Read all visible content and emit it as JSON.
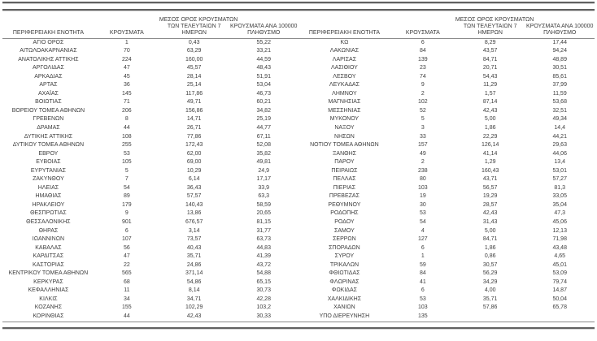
{
  "styles": {
    "text_color": "#3d3d3d",
    "rule_color_heavy": "#616161",
    "rule_color_light": "#8a8a8a",
    "background": "#ffffff"
  },
  "header": {
    "region": "ΠΕΡΙΦΕΡΕΙΑΚΗ ΕΝΟΤΗΤΑ",
    "cases": "ΚΡΟΥΣΜΑΤΑ",
    "avg7": [
      "ΜΕΣΟΣ ΟΡΟΣ ΚΡΟΥΣΜΑΤΩΝ",
      "ΤΩΝ ΤΕΛΕΥΤΑΙΩΝ 7",
      "ΗΜΕΡΩΝ"
    ],
    "per100k": [
      "ΚΡΟΥΣΜΑΤΑ ΑΝΑ 100000",
      "ΠΛΗΘΥΣΜΟ"
    ]
  },
  "tables": [
    {
      "rows": [
        [
          "ΑΓΙΟ ΟΡΟΣ",
          "1",
          "0,43",
          "55,22"
        ],
        [
          "ΑΙΤΩΛΟΑΚΑΡΝΑΝΙΑΣ",
          "70",
          "63,29",
          "33,21"
        ],
        [
          "ΑΝΑΤΟΛΙΚΗΣ ΑΤΤΙΚΗΣ",
          "224",
          "160,00",
          "44,59"
        ],
        [
          "ΑΡΓΟΛΙΔΑΣ",
          "47",
          "45,57",
          "48,43"
        ],
        [
          "ΑΡΚΑΔΙΑΣ",
          "45",
          "28,14",
          "51,91"
        ],
        [
          "ΑΡΤΑΣ",
          "36",
          "25,14",
          "53,04"
        ],
        [
          "ΑΧΑΪΑΣ",
          "145",
          "117,86",
          "46,73"
        ],
        [
          "ΒΟΙΩΤΙΑΣ",
          "71",
          "49,71",
          "60,21"
        ],
        [
          "ΒΟΡΕΙΟΥ ΤΟΜΕΑ ΑΘΗΝΩΝ",
          "206",
          "156,86",
          "34,82"
        ],
        [
          "ΓΡΕΒΕΝΩΝ",
          "8",
          "14,71",
          "25,19"
        ],
        [
          "ΔΡΑΜΑΣ",
          "44",
          "26,71",
          "44,77"
        ],
        [
          "ΔΥΤΙΚΗΣ ΑΤΤΙΚΗΣ",
          "108",
          "77,86",
          "67,11"
        ],
        [
          "ΔΥΤΙΚΟΥ ΤΟΜΕΑ ΑΘΗΝΩΝ",
          "255",
          "172,43",
          "52,08"
        ],
        [
          "ΕΒΡΟΥ",
          "53",
          "62,00",
          "35,82"
        ],
        [
          "ΕΥΒΟΙΑΣ",
          "105",
          "69,00",
          "49,81"
        ],
        [
          "ΕΥΡΥΤΑΝΙΑΣ",
          "5",
          "10,29",
          "24,9"
        ],
        [
          "ΖΑΚΥΝΘΟΥ",
          "7",
          "6,14",
          "17,17"
        ],
        [
          "ΗΛΕΙΑΣ",
          "54",
          "36,43",
          "33,9"
        ],
        [
          "ΗΜΑΘΙΑΣ",
          "89",
          "57,57",
          "63,3"
        ],
        [
          "ΗΡΑΚΛΕΙΟΥ",
          "179",
          "140,43",
          "58,59"
        ],
        [
          "ΘΕΣΠΡΩΤΙΑΣ",
          "9",
          "13,86",
          "20,65"
        ],
        [
          "ΘΕΣΣΑΛΟΝΙΚΗΣ",
          "901",
          "676,57",
          "81,15"
        ],
        [
          "ΘΗΡΑΣ",
          "6",
          "3,14",
          "31,77"
        ],
        [
          "ΙΩΑΝΝΙΝΩΝ",
          "107",
          "73,57",
          "63,73"
        ],
        [
          "ΚΑΒΑΛΑΣ",
          "56",
          "40,43",
          "44,83"
        ],
        [
          "ΚΑΡΔΙΤΣΑΣ",
          "47",
          "35,71",
          "41,39"
        ],
        [
          "ΚΑΣΤΟΡΙΑΣ",
          "22",
          "24,86",
          "43,72"
        ],
        [
          "ΚΕΝΤΡΙΚΟΥ ΤΟΜΕΑ ΑΘΗΝΩΝ",
          "565",
          "371,14",
          "54,88"
        ],
        [
          "ΚΕΡΚΥΡΑΣ",
          "68",
          "54,86",
          "65,15"
        ],
        [
          "ΚΕΦΑΛΛΗΝΙΑΣ",
          "11",
          "8,14",
          "30,73"
        ],
        [
          "ΚΙΛΚΙΣ",
          "34",
          "34,71",
          "42,28"
        ],
        [
          "ΚΟΖΑΝΗΣ",
          "155",
          "102,29",
          "103,2"
        ],
        [
          "ΚΟΡΙΝΘΙΑΣ",
          "44",
          "42,43",
          "30,33"
        ]
      ]
    },
    {
      "rows": [
        [
          "ΚΩ",
          "6",
          "8,29",
          "17,44"
        ],
        [
          "ΛΑΚΩΝΙΑΣ",
          "84",
          "43,57",
          "94,24"
        ],
        [
          "ΛΑΡΙΣΑΣ",
          "139",
          "84,71",
          "48,89"
        ],
        [
          "ΛΑΣΙΘΙΟΥ",
          "23",
          "20,71",
          "30,51"
        ],
        [
          "ΛΕΣΒΟΥ",
          "74",
          "54,43",
          "85,61"
        ],
        [
          "ΛΕΥΚΑΔΑΣ",
          "9",
          "11,29",
          "37,99"
        ],
        [
          "ΛΗΜΝΟΥ",
          "2",
          "1,57",
          "11,59"
        ],
        [
          "ΜΑΓΝΗΣΙΑΣ",
          "102",
          "87,14",
          "53,68"
        ],
        [
          "ΜΕΣΣΗΝΙΑΣ",
          "52",
          "42,43",
          "32,51"
        ],
        [
          "ΜΥΚΟΝΟΥ",
          "5",
          "5,00",
          "49,34"
        ],
        [
          "ΝΑΞΟΥ",
          "3",
          "1,86",
          "14,4"
        ],
        [
          "ΝΗΣΩΝ",
          "33",
          "22,29",
          "44,21"
        ],
        [
          "ΝΟΤΙΟΥ ΤΟΜΕΑ ΑΘΗΝΩΝ",
          "157",
          "126,14",
          "29,63"
        ],
        [
          "ΞΑΝΘΗΣ",
          "49",
          "41,14",
          "44,06"
        ],
        [
          "ΠΑΡΟΥ",
          "2",
          "1,29",
          "13,4"
        ],
        [
          "ΠΕΙΡΑΙΩΣ",
          "238",
          "160,43",
          "53,01"
        ],
        [
          "ΠΕΛΛΑΣ",
          "80",
          "43,71",
          "57,27"
        ],
        [
          "ΠΙΕΡΙΑΣ",
          "103",
          "56,57",
          "81,3"
        ],
        [
          "ΠΡΕΒΕΖΑΣ",
          "19",
          "19,29",
          "33,05"
        ],
        [
          "ΡΕΘΥΜΝΟΥ",
          "30",
          "28,57",
          "35,04"
        ],
        [
          "ΡΟΔΟΠΗΣ",
          "53",
          "42,43",
          "47,3"
        ],
        [
          "ΡΟΔΟΥ",
          "54",
          "31,43",
          "45,06"
        ],
        [
          "ΣΑΜΟΥ",
          "4",
          "5,00",
          "12,13"
        ],
        [
          "ΣΕΡΡΩΝ",
          "127",
          "84,71",
          "71,98"
        ],
        [
          "ΣΠΟΡΑΔΩΝ",
          "6",
          "1,86",
          "43,48"
        ],
        [
          "ΣΥΡΟΥ",
          "1",
          "0,86",
          "4,65"
        ],
        [
          "ΤΡΙΚΑΛΩΝ",
          "59",
          "30,57",
          "45,01"
        ],
        [
          "ΦΘΙΩΤΙΔΑΣ",
          "84",
          "56,29",
          "53,09"
        ],
        [
          "ΦΛΩΡΙΝΑΣ",
          "41",
          "34,29",
          "79,74"
        ],
        [
          "ΦΩΚΙΔΑΣ",
          "6",
          "4,00",
          "14,87"
        ],
        [
          "ΧΑΛΚΙΔΙΚΗΣ",
          "53",
          "35,71",
          "50,04"
        ],
        [
          "ΧΑΝΙΩΝ",
          "103",
          "57,86",
          "65,78"
        ],
        [
          "ΥΠΟ ΔΙΕΡΕΥΝΗΣΗ",
          "135",
          "",
          ""
        ]
      ]
    }
  ]
}
